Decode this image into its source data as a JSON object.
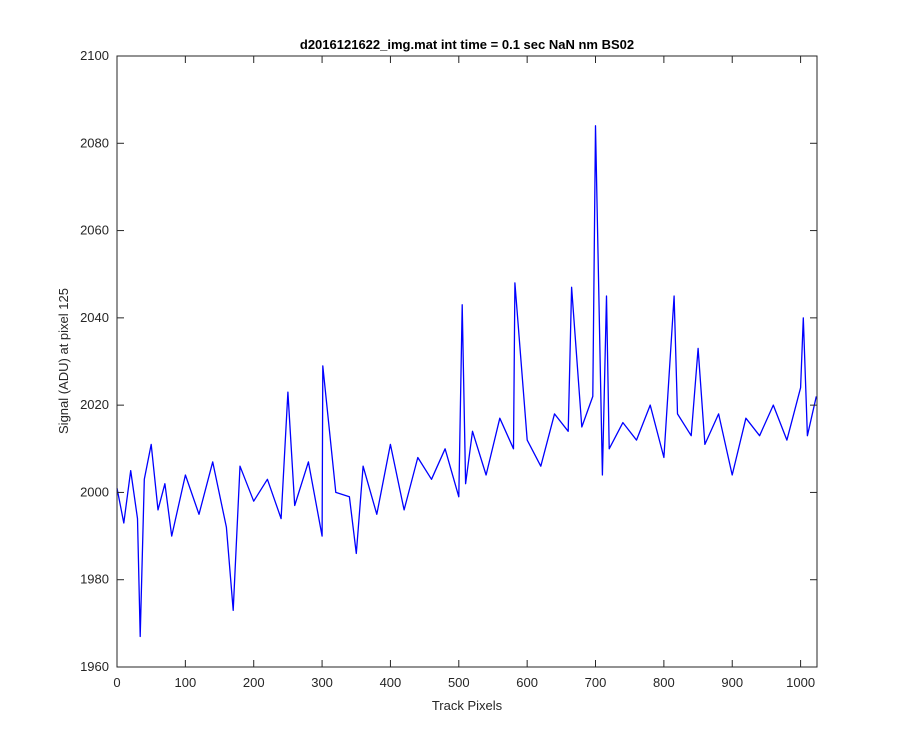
{
  "chart_data": {
    "type": "line",
    "title": "d2016121622_img.mat int time = 0.1 sec  NaN nm BS02",
    "xlabel": "Track Pixels",
    "ylabel": "Signal (ADU) at pixel 125",
    "xlim": [
      0,
      1024
    ],
    "ylim": [
      1960,
      2100
    ],
    "xticks": [
      0,
      100,
      200,
      300,
      400,
      500,
      600,
      700,
      800,
      900,
      1000
    ],
    "yticks": [
      1960,
      1980,
      2000,
      2020,
      2040,
      2060,
      2080,
      2100
    ],
    "grid": false,
    "line_color": "#0000ff",
    "series": [
      {
        "x": [
          0,
          10,
          20,
          30,
          34,
          40,
          50,
          60,
          70,
          80,
          100,
          120,
          140,
          160,
          170,
          180,
          200,
          220,
          240,
          250,
          260,
          280,
          300,
          301,
          320,
          340,
          350,
          360,
          380,
          400,
          420,
          440,
          460,
          480,
          500,
          505,
          510,
          520,
          540,
          560,
          580,
          582,
          600,
          620,
          640,
          660,
          665,
          680,
          696,
          700,
          710,
          716,
          720,
          740,
          760,
          780,
          800,
          815,
          820,
          840,
          850,
          860,
          880,
          900,
          920,
          940,
          960,
          980,
          1000,
          1004,
          1010,
          1023
        ],
        "y": [
          2001,
          1993,
          2005,
          1994,
          1967,
          2003,
          2011,
          1996,
          2002,
          1990,
          2004,
          1995,
          2007,
          1992,
          1973,
          2006,
          1998,
          2003,
          1994,
          2023,
          1997,
          2007,
          1990,
          2029,
          2000,
          1999,
          1986,
          2006,
          1995,
          2011,
          1996,
          2008,
          2003,
          2010,
          1999,
          2043,
          2002,
          2014,
          2004,
          2017,
          2010,
          2048,
          2012,
          2006,
          2018,
          2014,
          2047,
          2015,
          2022,
          2084,
          2004,
          2045,
          2010,
          2016,
          2012,
          2020,
          2008,
          2045,
          2018,
          2013,
          2033,
          2011,
          2018,
          2004,
          2017,
          2013,
          2020,
          2012,
          2024,
          2040,
          2013,
          2022
        ]
      }
    ]
  }
}
